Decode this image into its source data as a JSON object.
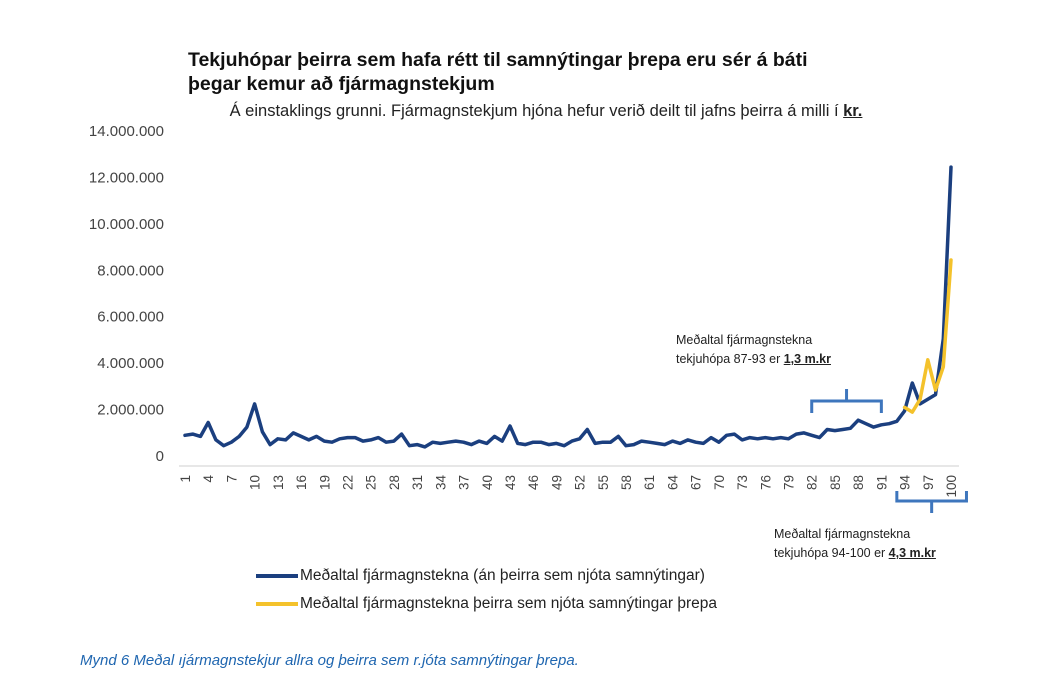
{
  "chart_data": {
    "type": "line",
    "title_lines": [
      "Tekjuhópar þeirra sem hafa rétt til samnýtingar þrepa eru sér á báti",
      "þegar kemur að fjármagnstekjum"
    ],
    "subtitle_prefix": "Á einstaklings grunni. Fjármagnstekjum hjóna hefur verið deilt til jafns þeirra á milli í ",
    "subtitle_unit": "kr.",
    "ylim": [
      0,
      14000000
    ],
    "y_ticks": [
      0,
      2000000,
      4000000,
      6000000,
      8000000,
      10000000,
      12000000,
      14000000
    ],
    "y_tick_labels": [
      "0",
      "2.000.000",
      "4.000.000",
      "6.000.000",
      "8.000.000",
      "10.000.000",
      "12.000.000",
      "14.000.000"
    ],
    "x_ticks": [
      1,
      4,
      7,
      10,
      13,
      16,
      19,
      22,
      25,
      28,
      31,
      34,
      37,
      40,
      43,
      46,
      49,
      52,
      55,
      58,
      61,
      64,
      67,
      70,
      73,
      76,
      79,
      82,
      85,
      88,
      91,
      94,
      97,
      100
    ],
    "series": [
      {
        "name": "Meðaltal fjármagnstekna (án þeirra sem njóta samnýtingar)",
        "color": "#1b3f7f",
        "x_start": 1,
        "values": [
          850000,
          900000,
          800000,
          1400000,
          650000,
          400000,
          550000,
          800000,
          1200000,
          2200000,
          1000000,
          450000,
          700000,
          650000,
          950000,
          800000,
          650000,
          800000,
          600000,
          550000,
          700000,
          750000,
          750000,
          600000,
          650000,
          750000,
          550000,
          600000,
          900000,
          400000,
          450000,
          350000,
          550000,
          500000,
          550000,
          600000,
          550000,
          450000,
          600000,
          500000,
          800000,
          600000,
          1250000,
          500000,
          450000,
          550000,
          550000,
          450000,
          500000,
          400000,
          600000,
          700000,
          1100000,
          500000,
          550000,
          550000,
          800000,
          400000,
          450000,
          600000,
          550000,
          500000,
          450000,
          600000,
          500000,
          650000,
          550000,
          500000,
          750000,
          550000,
          850000,
          900000,
          650000,
          750000,
          700000,
          750000,
          700000,
          750000,
          700000,
          900000,
          950000,
          850000,
          750000,
          1100000,
          1050000,
          1100000,
          1150000,
          1500000,
          1350000,
          1200000,
          1300000,
          1350000,
          1450000,
          1900000,
          3100000,
          2200000,
          2400000,
          2600000,
          5000000,
          12400000
        ]
      },
      {
        "name": "Meðaltal fjármagnstekna þeirra sem njóta samnýtingar þrepa",
        "color": "#f4c22b",
        "x_start": 94,
        "values": [
          2050000,
          1850000,
          2400000,
          4100000,
          2800000,
          3800000,
          8400000
        ]
      }
    ],
    "annotations": [
      {
        "line1": "Meðaltal fjármagnstekna",
        "line2_prefix": "tekjuhópa 87-93 er ",
        "value": "1,3 m.kr",
        "range": [
          82,
          91
        ]
      },
      {
        "line1": "Meðaltal fjármagnstekna",
        "line2_prefix": "tekjuhópa 94-100 er ",
        "value": "4,3 m.kr",
        "range": [
          93,
          102
        ]
      }
    ]
  },
  "caption": "Mynd 6 Meðal ıjármagnstekjur allra og þeirra sem r.jóta samnýtingar þrepa."
}
